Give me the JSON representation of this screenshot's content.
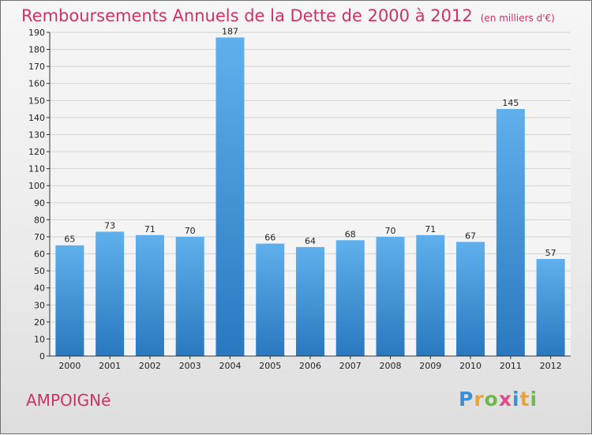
{
  "title": "Remboursements Annuels de la Dette de 2000 à 2012",
  "unit": "(en milliers d'€)",
  "commune": "AMPOIGNé",
  "logo": {
    "p": "P",
    "r": "r",
    "o": "o",
    "x": "x",
    "i1": "i",
    "t": "t",
    "i2": "i"
  },
  "colors": {
    "bar_light": "#5fb0ec",
    "bar_dark": "#2a78bf",
    "title": "#cc3366",
    "grid": "#d4d4d4"
  },
  "chart_data": {
    "type": "bar",
    "title": "Remboursements Annuels de la Dette de 2000 à 2012",
    "xlabel": "",
    "ylabel": "(en milliers d'€)",
    "categories": [
      "2000",
      "2001",
      "2002",
      "2003",
      "2004",
      "2005",
      "2006",
      "2007",
      "2008",
      "2009",
      "2010",
      "2011",
      "2012"
    ],
    "values": [
      65,
      73,
      71,
      70,
      187,
      66,
      64,
      68,
      70,
      71,
      67,
      145,
      57
    ],
    "ylim": [
      0,
      190
    ],
    "ytick_step": 10,
    "grid": true
  }
}
